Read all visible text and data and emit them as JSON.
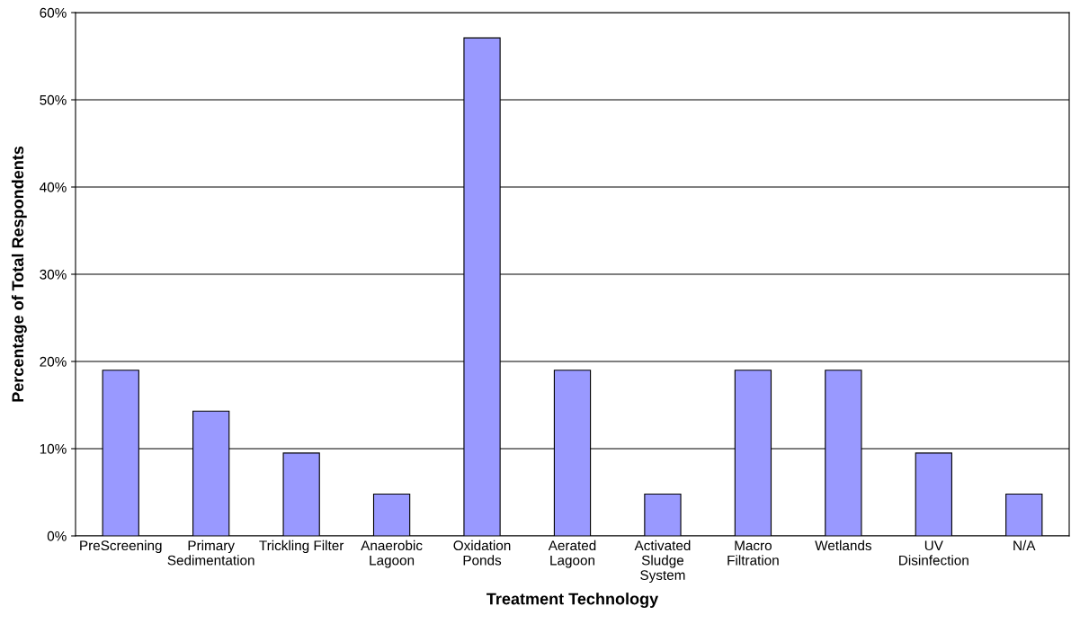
{
  "chart_data": {
    "type": "bar",
    "xlabel": "Treatment Technology",
    "ylabel": "Percentage of Total Respondents",
    "categories": [
      "PreScreening",
      "Primary\nSedimentation",
      "Trickling Filter",
      "Anaerobic\nLagoon",
      "Oxidation\nPonds",
      "Aerated\nLagoon",
      "Activated\nSludge\nSystem",
      "Macro\nFiltration",
      "Wetlands",
      "UV\nDisinfection",
      "N/A"
    ],
    "values": [
      19.0,
      14.3,
      9.5,
      4.8,
      57.1,
      19.0,
      4.8,
      19.0,
      19.0,
      9.5,
      4.8
    ],
    "color": "#9999ff",
    "ylim": [
      0,
      60
    ],
    "yticks": [
      {
        "value": 0,
        "label": "0%"
      },
      {
        "value": 10,
        "label": "10%"
      },
      {
        "value": 20,
        "label": "20%"
      },
      {
        "value": 30,
        "label": "30%"
      },
      {
        "value": 40,
        "label": "40%"
      },
      {
        "value": 50,
        "label": "50%"
      },
      {
        "value": 60,
        "label": "60%"
      }
    ],
    "grid": "y",
    "legend": false
  }
}
